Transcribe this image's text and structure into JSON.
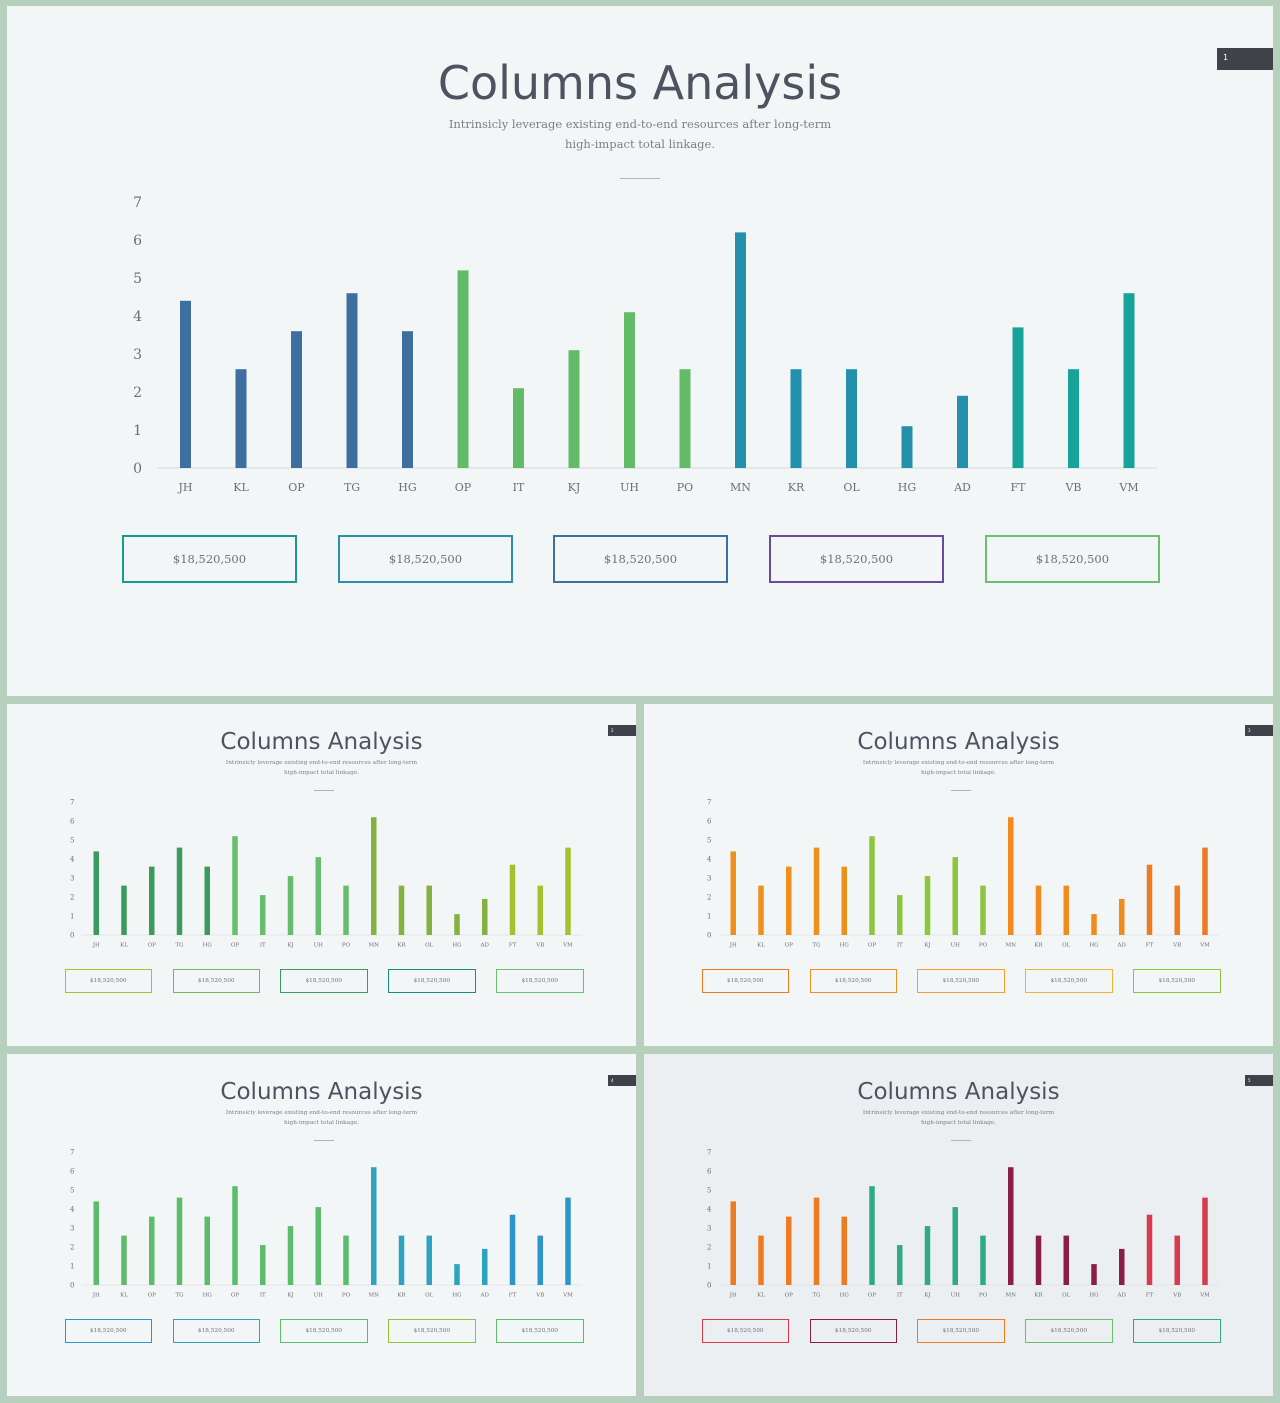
{
  "slides": [
    {
      "number": "1",
      "title": "Columns Analysis",
      "subtitle_lines": [
        "Intrinsicly leverage existing end-to-end resources after long-term",
        "high-impact total linkage."
      ],
      "bar_colors": [
        "#3f6fa0",
        "#3f6fa0",
        "#3f6fa0",
        "#3f6fa0",
        "#3f6fa0",
        "#63bb68",
        "#63bb68",
        "#63bb68",
        "#63bb68",
        "#63bb68",
        "#2391ab",
        "#2391ab",
        "#2391ab",
        "#2391ab",
        "#2391ab",
        "#17a39a",
        "#17a39a",
        "#17a39a"
      ],
      "boxes": [
        {
          "value": "$18,520,500",
          "color": "#1a9a8d"
        },
        {
          "value": "$18,520,500",
          "color": "#2a91a8"
        },
        {
          "value": "$18,520,500",
          "color": "#3f6fa0"
        },
        {
          "value": "$18,520,500",
          "color": "#6a4a99"
        },
        {
          "value": "$18,520,500",
          "color": "#6bc06d"
        }
      ]
    },
    {
      "number": "2",
      "title": "Columns Analysis",
      "subtitle_lines": [
        "Intrinsicly leverage existing end-to-end resources after long-term",
        "high-impact total linkage."
      ],
      "bar_colors": [
        "#3a9b5c",
        "#3a9b5c",
        "#3a9b5c",
        "#3a9b5c",
        "#3a9b5c",
        "#66bd6e",
        "#66bd6e",
        "#66bd6e",
        "#66bd6e",
        "#66bd6e",
        "#84b240",
        "#84b240",
        "#84b240",
        "#84b240",
        "#84b240",
        "#a4c230",
        "#a4c230",
        "#a4c230"
      ],
      "boxes": [
        {
          "value": "$18,520,500",
          "color": "#a4c230"
        },
        {
          "value": "$18,520,500",
          "color": "#6bbd58"
        },
        {
          "value": "$18,520,500",
          "color": "#3a9b5c"
        },
        {
          "value": "$18,520,500",
          "color": "#1d8c80"
        },
        {
          "value": "$18,520,500",
          "color": "#6bc06d"
        }
      ]
    },
    {
      "number": "3",
      "title": "Columns Analysis",
      "subtitle_lines": [
        "Intrinsicly leverage existing end-to-end resources after long-term",
        "high-impact total linkage."
      ],
      "bar_colors": [
        "#f0901c",
        "#f0901c",
        "#f0901c",
        "#f0901c",
        "#f0901c",
        "#8cc63f",
        "#8cc63f",
        "#8cc63f",
        "#8cc63f",
        "#8cc63f",
        "#f28a1e",
        "#f28a1e",
        "#f28a1e",
        "#f28a1e",
        "#f28a1e",
        "#ee7a22",
        "#ee7a22",
        "#ee7a22"
      ],
      "boxes": [
        {
          "value": "$18,520,500",
          "color": "#ee7a22"
        },
        {
          "value": "$18,520,500",
          "color": "#f0901c"
        },
        {
          "value": "$18,520,500",
          "color": "#f2a12c"
        },
        {
          "value": "$18,520,500",
          "color": "#f2b232"
        },
        {
          "value": "$18,520,500",
          "color": "#8cc63f"
        }
      ]
    },
    {
      "number": "4",
      "title": "Columns Analysis",
      "subtitle_lines": [
        "Intrinsicly leverage existing end-to-end resources after long-term",
        "high-impact total linkage."
      ],
      "bar_colors": [
        "#5dbb6c",
        "#5dbb6c",
        "#5dbb6c",
        "#5dbb6c",
        "#5dbb6c",
        "#5dbb6c",
        "#5dbb6c",
        "#5dbb6c",
        "#5dbb6c",
        "#5dbb6c",
        "#2ea3c0",
        "#2ea3c0",
        "#2ea3c0",
        "#2ea3c0",
        "#2ea3c0",
        "#2e95c8",
        "#2e95c8",
        "#2e95c8"
      ],
      "boxes": [
        {
          "value": "$18,520,500",
          "color": "#2e95c8"
        },
        {
          "value": "$18,520,500",
          "color": "#2ea3c0"
        },
        {
          "value": "$18,520,500",
          "color": "#5dbb6c"
        },
        {
          "value": "$18,520,500",
          "color": "#8cc63f"
        },
        {
          "value": "$18,520,500",
          "color": "#5dbb6c"
        }
      ]
    },
    {
      "number": "5",
      "title": "Columns Analysis",
      "subtitle_lines": [
        "Intrinsicly leverage existing end-to-end resources after long-term",
        "high-impact total linkage."
      ],
      "bar_colors": [
        "#ee7a22",
        "#ee7a22",
        "#ee7a22",
        "#ee7a22",
        "#ee7a22",
        "#2eaa86",
        "#2eaa86",
        "#2eaa86",
        "#2eaa86",
        "#2eaa86",
        "#8a1e45",
        "#8a1e45",
        "#8a1e45",
        "#8a1e45",
        "#8a1e45",
        "#d63b4e",
        "#d63b4e",
        "#d63b4e"
      ],
      "boxes": [
        {
          "value": "$18,520,500",
          "color": "#d63b4e"
        },
        {
          "value": "$18,520,500",
          "color": "#8a1e45"
        },
        {
          "value": "$18,520,500",
          "color": "#ee7a22"
        },
        {
          "value": "$18,520,500",
          "color": "#6bc06d"
        },
        {
          "value": "$18,520,500",
          "color": "#2eaa86"
        }
      ]
    }
  ],
  "chart_data": {
    "type": "bar",
    "categories": [
      "JH",
      "KL",
      "OP",
      "TG",
      "HG",
      "OP",
      "IT",
      "KJ",
      "UH",
      "PO",
      "MN",
      "KR",
      "OL",
      "HG",
      "AD",
      "FT",
      "VB",
      "VM"
    ],
    "values": [
      4.4,
      2.6,
      3.6,
      4.6,
      3.6,
      5.2,
      2.1,
      3.1,
      4.1,
      2.6,
      6.2,
      2.6,
      2.6,
      1.1,
      1.9,
      3.7,
      2.6,
      4.6
    ],
    "yticks": [
      "0",
      "1",
      "2",
      "3",
      "4",
      "5",
      "6",
      "7"
    ],
    "ylim": [
      0,
      7
    ],
    "grid": false,
    "legend": "none"
  }
}
